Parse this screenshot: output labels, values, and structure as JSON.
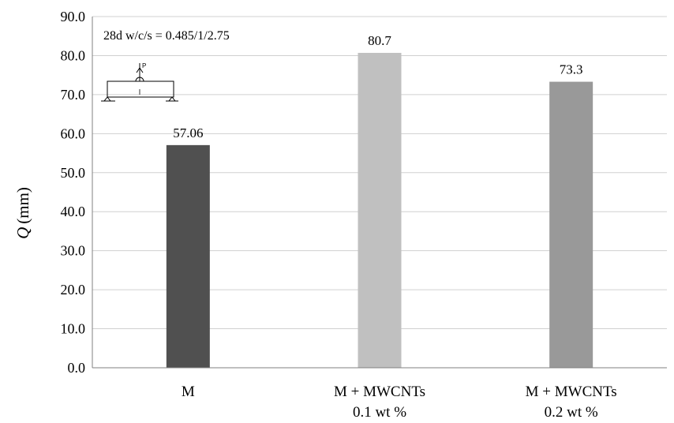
{
  "chart_data": {
    "type": "bar",
    "title": "",
    "ylabel_symbol": "Q",
    "ylabel_unit": "(mm)",
    "xlabel": "",
    "ylim": [
      0,
      90
    ],
    "ytick_step": 10,
    "ytick_labels": [
      "0.0",
      "10.0",
      "20.0",
      "30.0",
      "40.0",
      "50.0",
      "60.0",
      "70.0",
      "80.0",
      "90.0"
    ],
    "grid": true,
    "categories": [
      [
        "M"
      ],
      [
        "M + MWCNTs",
        "0.1 wt %"
      ],
      [
        "M + MWCNTs",
        "0.2 wt %"
      ]
    ],
    "values": [
      57.06,
      80.7,
      73.3
    ],
    "data_labels": [
      "57.06",
      "80.7",
      "73.3"
    ],
    "colors": [
      "#505050",
      "#c0c0c0",
      "#999999"
    ],
    "annotation": "28d w/c/s = 0.485/1/2.75",
    "inset_label": "P"
  }
}
